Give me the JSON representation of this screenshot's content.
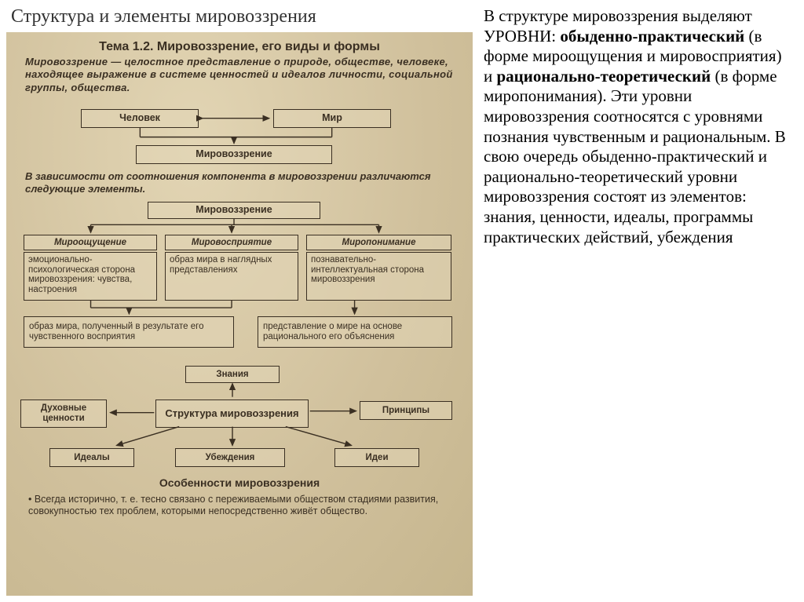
{
  "colors": {
    "scan_bg_light": "#e2d5b4",
    "scan_bg_dark": "#c6b68e",
    "box_border": "#3a2f22",
    "text_dark": "#3a2f22",
    "page_bg": "#ffffff",
    "title_color": "#333333"
  },
  "slide_title": "Структура и элементы мировоззрения",
  "scan": {
    "topic": "Тема 1.2. Мировоззрение, его виды и формы",
    "definition": "Мировоззрение — целостное представление о природе, обществе, человеке, находящее выражение в системе ценностей и идеалов личности, социальной группы, общества.",
    "row1": {
      "left": "Человек",
      "right": "Мир"
    },
    "center1": "Мировоззрение",
    "para1": "В зависимости от соотношения компонента в мировоззрении различаются следующие элементы.",
    "center2": "Мировоззрение",
    "col_heads": [
      "Мироощущение",
      "Мировосприятие",
      "Миропонимание"
    ],
    "col_bodies": [
      "эмоционально-психологическая сторона мировоззрения: чувства, настроения",
      "образ мира в наглядных представлениях",
      "познавательно-интеллектуальная сторона мировоззрения"
    ],
    "bottom_boxes": [
      "образ мира, полученный в результате его чувственного восприятия",
      "представление о мире на основе рационального его объяснения"
    ],
    "structure": {
      "center": "Структура мировоззрения",
      "top": "Знания",
      "left_top": "Духовные ценности",
      "right": "Принципы",
      "bottom_left": "Идеалы",
      "bottom_mid": "Убеждения",
      "bottom_right": "Идеи"
    },
    "features_title": "Особенности мировоззрения",
    "features_text": "• Всегда исторично, т. е. тесно связано с переживаемыми обществом стадиями развития, совокупностью тех проблем, которыми непосредственно живёт общество."
  },
  "right_column": "В структуре мировоззрения выделяют УРОВНИ: <b>обыденно-практический</b> (в форме мироощущения и мировосприятия) и <b>рационально-теоретический</b> (в форме миропонимания). Эти уровни мировоззрения соотносятся с уровнями познания чувственным и рациональным. В свою очередь обыденно-практический и рационально-теоретический уровни мировоззрения состоят из элементов: знания, ценности, идеалы, программы практических действий, убеждения"
}
